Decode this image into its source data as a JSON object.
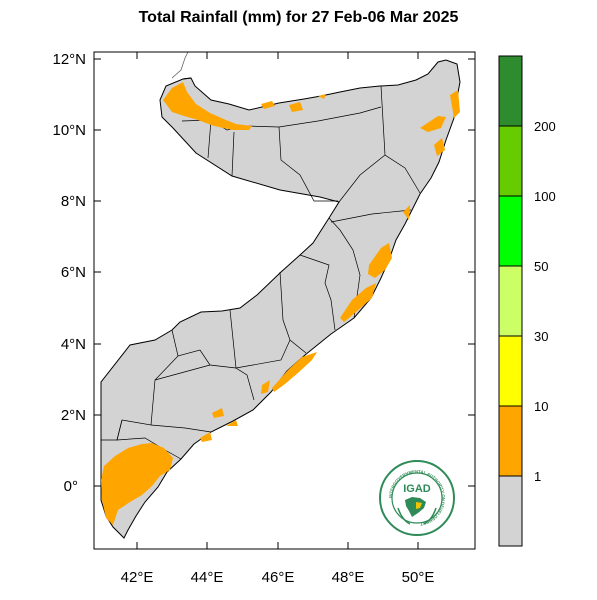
{
  "title": "Total Rainfall (mm) for 27 Feb-06 Mar 2025",
  "map": {
    "lat_ticks": [
      "12°N",
      "10°N",
      "8°N",
      "6°N",
      "4°N",
      "2°N",
      "0°"
    ],
    "lon_ticks": [
      "42°E",
      "44°E",
      "46°E",
      "48°E",
      "50°E"
    ],
    "colors": {
      "land": "#d3d3d3",
      "rain_1_10": "#ffa500"
    }
  },
  "colorbar": {
    "labels": [
      "1",
      "10",
      "30",
      "50",
      "100",
      "200"
    ],
    "colors": [
      "#d3d3d3",
      "#ffa500",
      "#ffff00",
      "#ccff66",
      "#00ff00",
      "#66cc00",
      "#2e8b2e"
    ]
  },
  "logo": {
    "name": "IGAD",
    "ring_text": "INTERGOVERNMENTAL AUTHORITY ON DEVELOPMENT"
  }
}
